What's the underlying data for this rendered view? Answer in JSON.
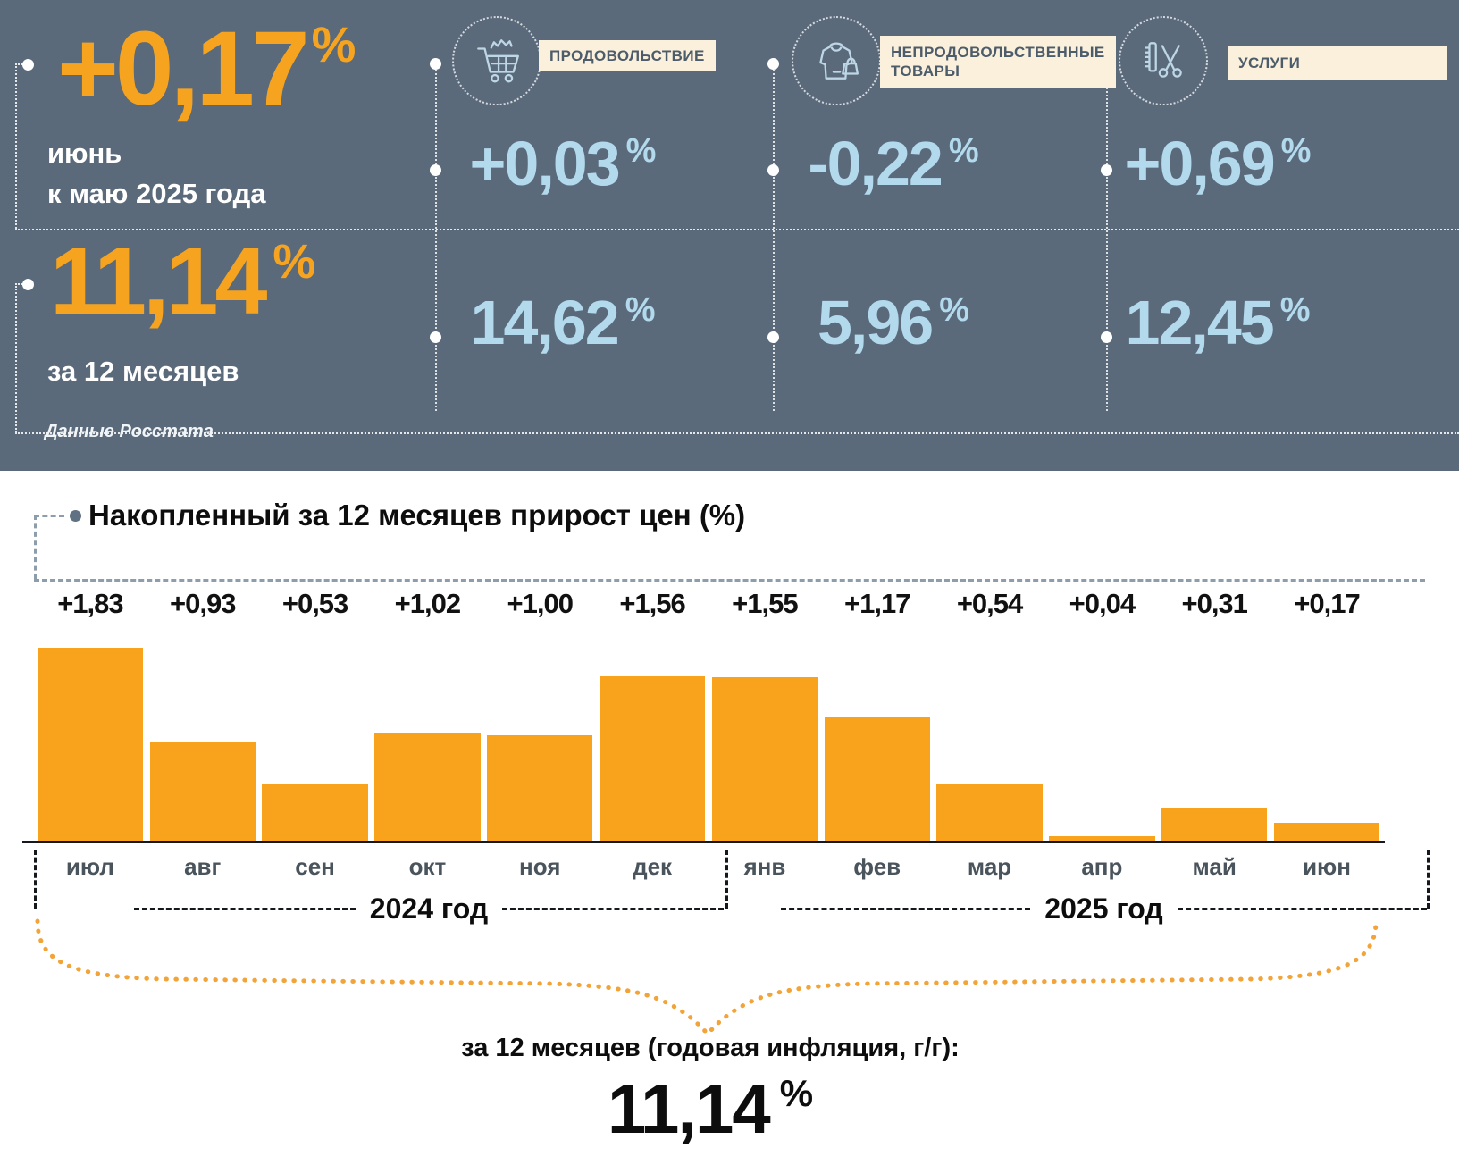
{
  "header": {
    "monthly": {
      "value": "+0,17",
      "percent": "%",
      "caption_line1": "июнь",
      "caption_line2": "к маю 2025 года"
    },
    "annual": {
      "value": "11,14",
      "percent": "%",
      "caption": "за 12 месяцев"
    },
    "source": "Данные Росстата",
    "categories": [
      {
        "label": "ПРОДОВОЛЬСТВИЕ",
        "icon": "shopping-cart-icon",
        "monthly": "+0,03",
        "annual": "14,62",
        "percent": "%"
      },
      {
        "label": "НЕПРОДОВОЛЬСТВЕННЫЕ ТОВАРЫ",
        "icon": "clothes-and-bag-icon",
        "monthly": "-0,22",
        "annual": "5,96",
        "percent": "%"
      },
      {
        "label": "УСЛУГИ",
        "icon": "comb-and-scissors-icon",
        "monthly": "+0,69",
        "annual": "12,45",
        "percent": "%"
      }
    ],
    "colors": {
      "background": "#5a6a7b",
      "accent_orange": "#f6a41f",
      "value_blue": "#b2d9ec",
      "chip_background": "#faf0dc"
    }
  },
  "chart_data": {
    "type": "bar",
    "title": "Накопленный за 12 месяцев прирост цен (%)",
    "categories": [
      "июл",
      "авг",
      "сен",
      "окт",
      "ноя",
      "дек",
      "янв",
      "фев",
      "мар",
      "апр",
      "май",
      "июн"
    ],
    "values": [
      1.83,
      0.93,
      0.53,
      1.02,
      1.0,
      1.56,
      1.55,
      1.17,
      0.54,
      0.04,
      0.31,
      0.17
    ],
    "bar_labels": [
      "+1,83",
      "+0,93",
      "+0,53",
      "+1,02",
      "+1,00",
      "+1,56",
      "+1,55",
      "+1,17",
      "+0,54",
      "+0,04",
      "+0,31",
      "+0,17"
    ],
    "groups": [
      {
        "label": "2024 год",
        "months": [
          "июл",
          "авг",
          "сен",
          "окт",
          "ноя",
          "дек"
        ]
      },
      {
        "label": "2025 год",
        "months": [
          "янв",
          "фев",
          "мар",
          "апр",
          "май",
          "июн"
        ]
      }
    ],
    "bar_color": "#f9a21b",
    "ylim": [
      0,
      2
    ],
    "grid": false,
    "footer": {
      "caption": "за 12 месяцев (годовая инфляция, г/г):",
      "value": "11,14",
      "percent": "%"
    }
  }
}
